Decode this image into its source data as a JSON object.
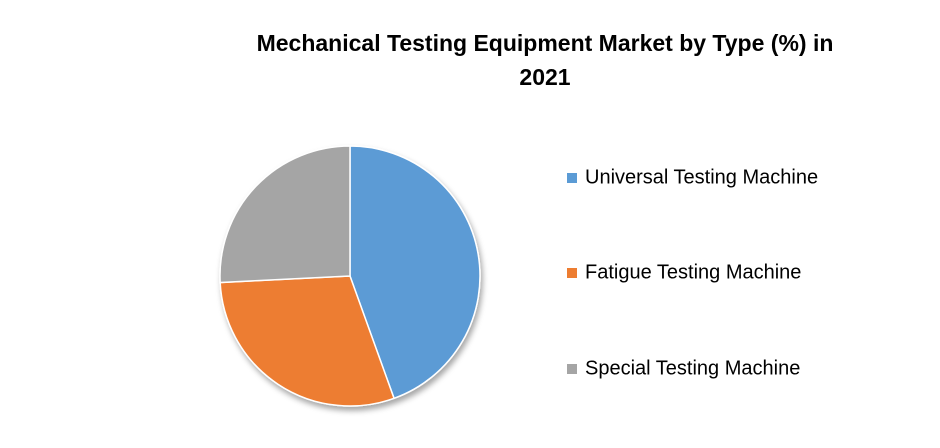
{
  "chart_data": {
    "type": "pie",
    "title": "Mechanical Testing Equipment Market by Type (%) in 2021",
    "categories": [
      "Universal Testing Machine",
      "Fatigue Testing Machine",
      "Special Testing Machine"
    ],
    "values": [
      44.5,
      29.7,
      25.8
    ],
    "colors": [
      "#5b9bd5",
      "#ed7d31",
      "#a5a5a5"
    ],
    "legend": "right"
  }
}
